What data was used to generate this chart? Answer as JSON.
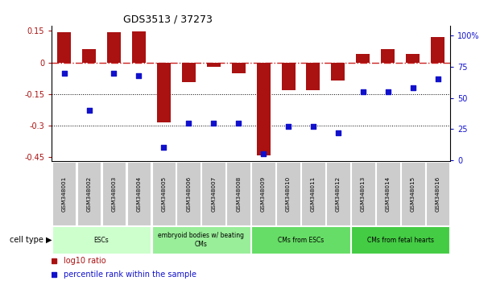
{
  "title": "GDS3513 / 37273",
  "samples": [
    "GSM348001",
    "GSM348002",
    "GSM348003",
    "GSM348004",
    "GSM348005",
    "GSM348006",
    "GSM348007",
    "GSM348008",
    "GSM348009",
    "GSM348010",
    "GSM348011",
    "GSM348012",
    "GSM348013",
    "GSM348014",
    "GSM348015",
    "GSM348016"
  ],
  "log10_ratio": [
    0.142,
    0.065,
    0.143,
    0.148,
    -0.285,
    -0.095,
    -0.02,
    -0.05,
    -0.44,
    -0.13,
    -0.13,
    -0.085,
    0.04,
    0.065,
    0.04,
    0.12
  ],
  "percentile_rank": [
    70,
    40,
    70,
    68,
    10,
    30,
    30,
    30,
    5,
    27,
    27,
    22,
    55,
    55,
    58,
    65
  ],
  "bar_color": "#aa1111",
  "dot_color": "#1111cc",
  "ref_line_color": "#cc2222",
  "dotted_line_color": "#000000",
  "ylim_left": [
    -0.47,
    0.175
  ],
  "ylim_right": [
    -1.0,
    108
  ],
  "yticks_left": [
    0.15,
    0.0,
    -0.15,
    -0.3,
    -0.45
  ],
  "ytick_left_labels": [
    "0.15",
    "0",
    "-0.15",
    "-0.3",
    "-0.45"
  ],
  "yticks_right": [
    0,
    25,
    50,
    75,
    100
  ],
  "ytick_right_labels": [
    "0",
    "25",
    "50",
    "75",
    "100%"
  ],
  "cell_type_groups": [
    {
      "label": "ESCs",
      "start": 0,
      "end": 3,
      "color": "#ccffcc"
    },
    {
      "label": "embryoid bodies w/ beating\nCMs",
      "start": 4,
      "end": 7,
      "color": "#99ee99"
    },
    {
      "label": "CMs from ESCs",
      "start": 8,
      "end": 11,
      "color": "#66dd66"
    },
    {
      "label": "CMs from fetal hearts",
      "start": 12,
      "end": 15,
      "color": "#44cc44"
    }
  ],
  "legend_bar_label": "log10 ratio",
  "legend_dot_label": "percentile rank within the sample",
  "cell_type_label": "cell type"
}
